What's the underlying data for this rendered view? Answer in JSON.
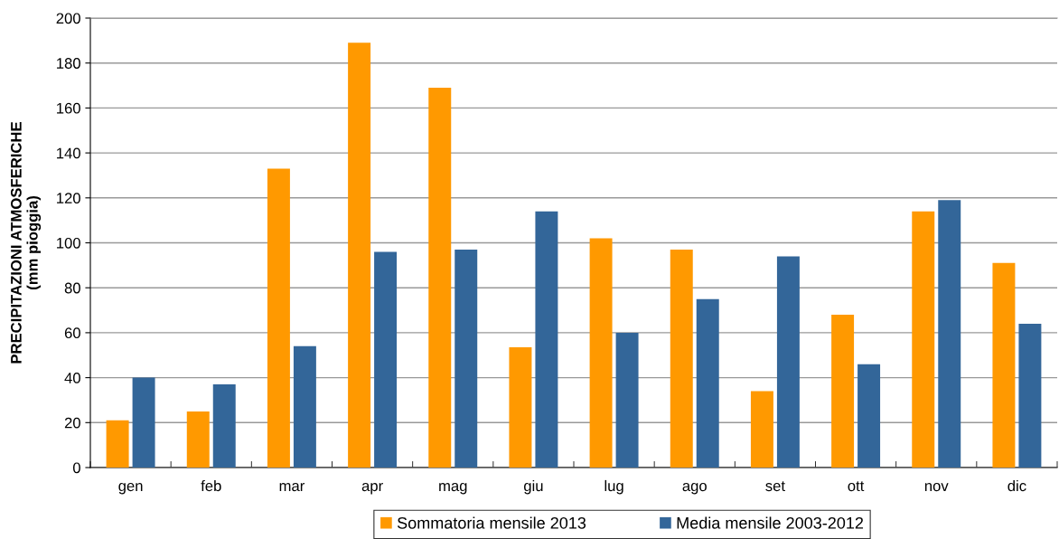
{
  "chart_data": {
    "type": "bar",
    "ylabel": "PRECIPITAZIONI ATMOSFERICHE\n(mm pioggia)",
    "categories": [
      "gen",
      "feb",
      "mar",
      "apr",
      "mag",
      "giu",
      "lug",
      "ago",
      "set",
      "ott",
      "nov",
      "dic"
    ],
    "series": [
      {
        "name": "Sommatoria mensile 2013",
        "color": "#ff9900",
        "values": [
          21,
          25,
          133,
          189,
          169,
          53.5,
          102,
          97,
          34,
          68,
          114,
          91
        ]
      },
      {
        "name": "Media mensile 2003-2012",
        "color": "#336699",
        "values": [
          40,
          37,
          54,
          96,
          97,
          114,
          60,
          75,
          94,
          46,
          119,
          64
        ]
      }
    ],
    "ylim": [
      0,
      200
    ],
    "yticks": [
      0,
      20,
      40,
      60,
      80,
      100,
      120,
      140,
      160,
      180,
      200
    ],
    "grid": "y",
    "legend": "bottom"
  }
}
